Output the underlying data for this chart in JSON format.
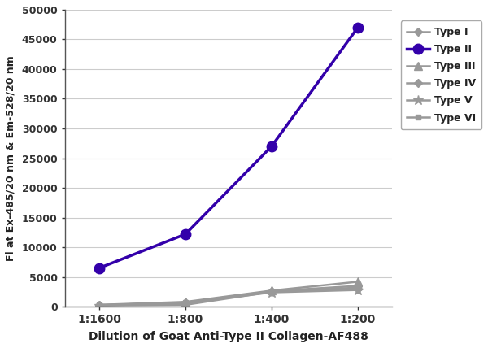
{
  "x_labels": [
    "1:1600",
    "1:800",
    "1:400",
    "1:200"
  ],
  "x_values": [
    0,
    1,
    2,
    3
  ],
  "series": {
    "Type I": [
      200,
      300,
      2500,
      3000
    ],
    "Type II": [
      6500,
      12200,
      27000,
      47000
    ],
    "Type III": [
      300,
      800,
      2700,
      4200
    ],
    "Type IV": [
      250,
      700,
      2600,
      3500
    ],
    "Type V": [
      200,
      600,
      2400,
      2800
    ],
    "Type VI": [
      250,
      650,
      2500,
      3200
    ]
  },
  "colors": {
    "Type I": "#999999",
    "Type II": "#3300aa",
    "Type III": "#999999",
    "Type IV": "#999999",
    "Type V": "#999999",
    "Type VI": "#999999"
  },
  "markers": {
    "Type I": "D",
    "Type II": "o",
    "Type III": "^",
    "Type IV": "D",
    "Type V": "*",
    "Type VI": "s"
  },
  "marker_sizes": {
    "Type I": 5,
    "Type II": 9,
    "Type III": 7,
    "Type IV": 5,
    "Type V": 9,
    "Type VI": 5
  },
  "line_widths": {
    "Type I": 1.8,
    "Type II": 2.5,
    "Type III": 1.8,
    "Type IV": 1.8,
    "Type V": 1.8,
    "Type VI": 1.8
  },
  "ylabel": "Fl at Ex-485/20 nm & Em-528/20 nm",
  "xlabel": "Dilution of Goat Anti-Type II Collagen-AF488",
  "ylim": [
    0,
    50000
  ],
  "yticks": [
    0,
    5000,
    10000,
    15000,
    20000,
    25000,
    30000,
    35000,
    40000,
    45000,
    50000
  ],
  "background_color": "#ffffff",
  "grid_color": "#cccccc"
}
